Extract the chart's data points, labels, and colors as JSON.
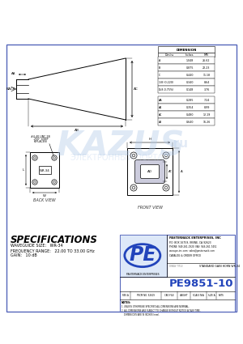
{
  "title": "PE9851-10",
  "desc_title": "STANDARD GAIN HORN WR-34",
  "company": "PASTERNACK ENTERPRISES, INC",
  "specs_title": "SPECIFICATIONS",
  "waveguide": "WAVEGUIDE SIZE:   WR-34",
  "freq_range": "FREQUENCY RANGE:   22.00 TO 33.00 GHz",
  "gain": "GAIN:   10 dB",
  "table1_rows": [
    [
      "A",
      "1.048",
      "26.62"
    ],
    [
      "B",
      "0.875",
      "22.23"
    ],
    [
      "C",
      "0.440",
      "11.18"
    ],
    [
      "1/8 (0.220)",
      "0.340",
      "8.64"
    ],
    [
      "(1/8-0.75%)",
      "0.148",
      "3.76"
    ]
  ],
  "table2_rows": [
    [
      "AA",
      "0.285",
      "7.24"
    ],
    [
      "A4",
      "0.354",
      "8.99"
    ],
    [
      "AC",
      "0.480",
      "12.19"
    ],
    [
      "A3",
      "0.640",
      "16.26"
    ]
  ],
  "bg_color": "#ffffff",
  "border_color": "#5566bb",
  "pe_blue": "#2244bb",
  "light_blue_bg": "#dde8f8"
}
